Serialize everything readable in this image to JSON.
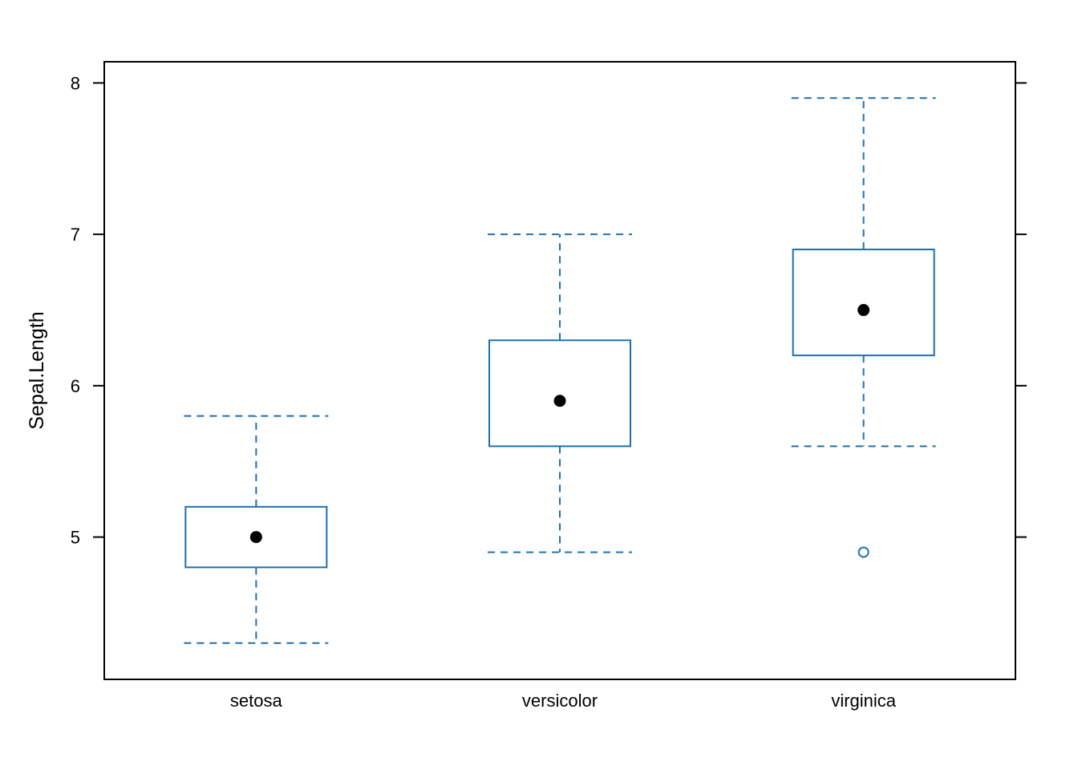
{
  "chart_data": {
    "type": "boxplot",
    "title": "",
    "xlabel": "",
    "ylabel": "Sepal.Length",
    "ylim": [
      4.06,
      8.14
    ],
    "y_ticks": [
      5,
      6,
      7,
      8
    ],
    "categories": [
      "setosa",
      "versicolor",
      "virginica"
    ],
    "grid": false,
    "legend": "none",
    "box_color": "#1F6FAE",
    "median_marker_color": "#000000",
    "frame_color": "#000000",
    "boxes": [
      {
        "name": "setosa",
        "whisker_low": 4.3,
        "q1": 4.8,
        "median": 5.0,
        "q3": 5.2,
        "whisker_high": 5.8,
        "outliers": []
      },
      {
        "name": "versicolor",
        "whisker_low": 4.9,
        "q1": 5.6,
        "median": 5.9,
        "q3": 6.3,
        "whisker_high": 7.0,
        "outliers": []
      },
      {
        "name": "virginica",
        "whisker_low": 5.6,
        "q1": 6.2,
        "median": 6.5,
        "q3": 6.9,
        "whisker_high": 7.9,
        "outliers": [
          4.9
        ]
      }
    ]
  }
}
